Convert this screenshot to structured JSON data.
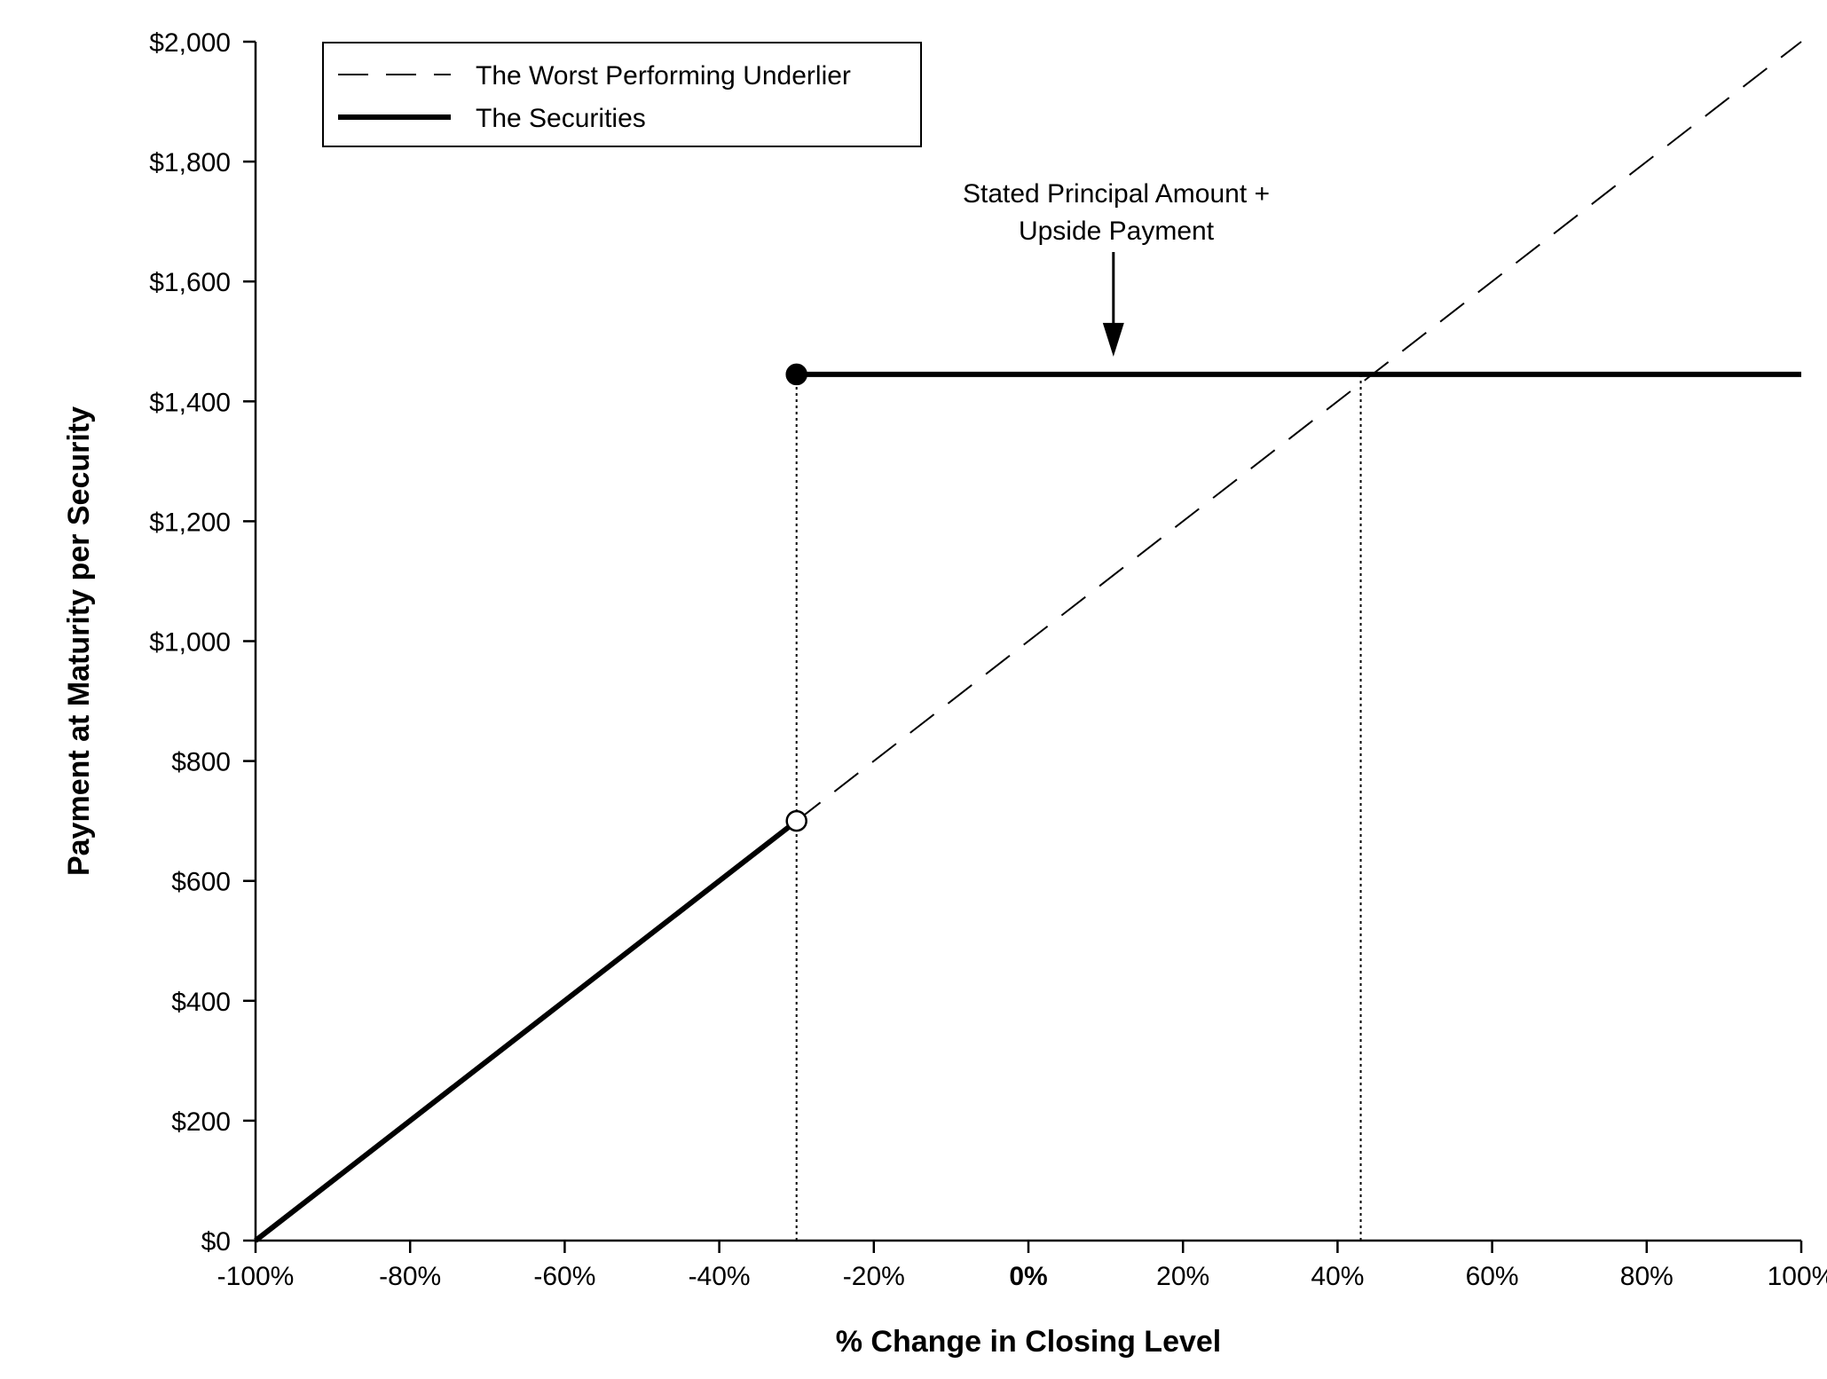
{
  "chart_data": {
    "type": "line",
    "title": "",
    "xlabel": "% Change in Closing Level",
    "ylabel": "Payment at Maturity per Security",
    "xlim": [
      -100,
      100
    ],
    "ylim": [
      0,
      2000
    ],
    "grid": false,
    "legend_position": "top-left",
    "x_ticks": [
      -100,
      -80,
      -60,
      -40,
      -20,
      0,
      20,
      40,
      60,
      80,
      100
    ],
    "x_tick_labels": [
      "-100%",
      "-80%",
      "-60%",
      "-40%",
      "-20%",
      "0%",
      "20%",
      "40%",
      "60%",
      "80%",
      "100%"
    ],
    "x_tick_bold": [
      false,
      false,
      false,
      false,
      false,
      true,
      false,
      false,
      false,
      false,
      false
    ],
    "y_ticks": [
      0,
      200,
      400,
      600,
      800,
      1000,
      1200,
      1400,
      1600,
      1800,
      2000
    ],
    "y_tick_labels": [
      "$0",
      "$200",
      "$400",
      "$600",
      "$800",
      "$1,000",
      "$1,200",
      "$1,400",
      "$1,600",
      "$1,800",
      "$2,000"
    ],
    "series": [
      {
        "name": "The Worst Performing Underlier",
        "style": "dashed",
        "color": "#000000",
        "x": [
          -30,
          100
        ],
        "y": [
          700,
          2000
        ]
      },
      {
        "name": "The Securities",
        "style": "solid-thick",
        "color": "#000000",
        "segments": [
          {
            "x": [
              -100,
              -30
            ],
            "y": [
              0,
              700
            ]
          },
          {
            "x": [
              -30,
              100
            ],
            "y": [
              1445,
              1445
            ]
          }
        ]
      }
    ],
    "markers": [
      {
        "x": -30,
        "y": 1445,
        "fill": "filled"
      },
      {
        "x": -30,
        "y": 700,
        "fill": "open"
      }
    ],
    "reference_lines": [
      {
        "x": -30,
        "y_from": 0,
        "y_to": 1445
      },
      {
        "x": 43,
        "y_from": 0,
        "y_to": 1445
      }
    ],
    "annotations": [
      {
        "lines": [
          "Stated Principal Amount +",
          "Upside Payment"
        ],
        "arrow_x": 11,
        "arrow_y": 1445
      }
    ]
  }
}
